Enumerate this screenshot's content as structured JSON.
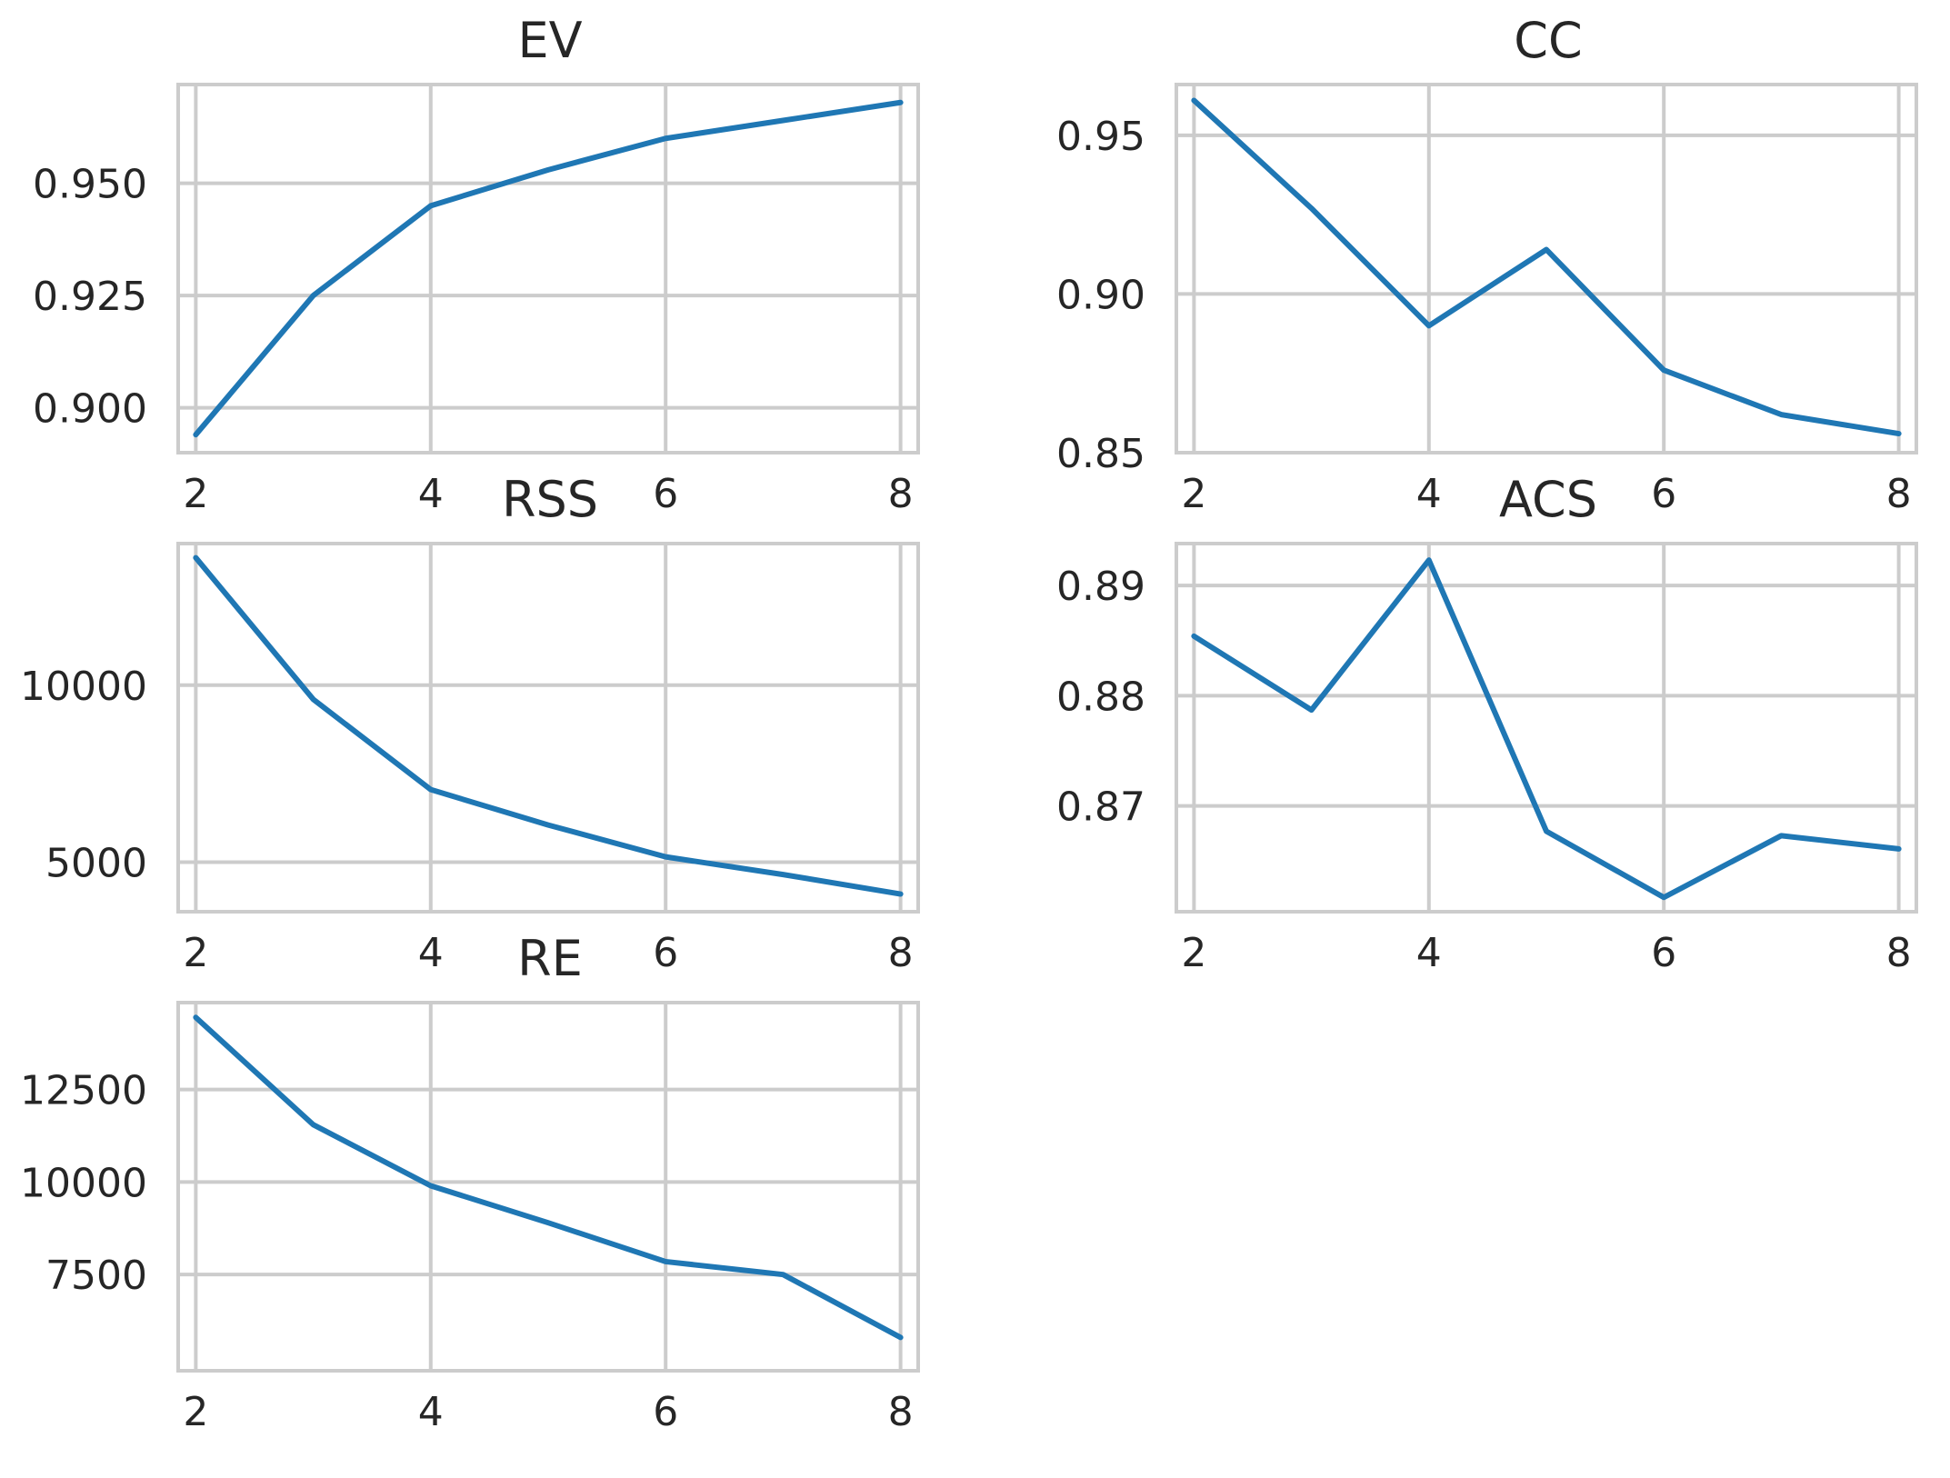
{
  "chart_data": [
    {
      "type": "line",
      "title": "EV",
      "xlabel": "",
      "ylabel": "",
      "x": [
        2,
        3,
        4,
        5,
        6,
        7,
        8
      ],
      "series": [
        {
          "values": [
            0.894,
            0.925,
            0.945,
            0.953,
            0.96,
            0.964,
            0.968
          ]
        }
      ],
      "xlim": [
        1.85,
        8.15
      ],
      "ylim": [
        0.89,
        0.972
      ],
      "xticks": [
        2,
        4,
        6,
        8
      ],
      "xtick_labels": [
        "2",
        "4",
        "6",
        "8"
      ],
      "yticks": [
        0.9,
        0.925,
        0.95
      ],
      "ytick_labels": [
        "0.900",
        "0.925",
        "0.950"
      ],
      "grid": true
    },
    {
      "type": "line",
      "title": "CC",
      "xlabel": "",
      "ylabel": "",
      "x": [
        2,
        3,
        4,
        5,
        6,
        7,
        8
      ],
      "series": [
        {
          "values": [
            0.961,
            0.927,
            0.89,
            0.914,
            0.876,
            0.862,
            0.856
          ]
        }
      ],
      "xlim": [
        1.85,
        8.15
      ],
      "ylim": [
        0.85,
        0.966
      ],
      "xticks": [
        2,
        4,
        6,
        8
      ],
      "xtick_labels": [
        "2",
        "4",
        "6",
        "8"
      ],
      "yticks": [
        0.85,
        0.9,
        0.95
      ],
      "ytick_labels": [
        "0.85",
        "0.90",
        "0.95"
      ],
      "grid": true
    },
    {
      "type": "line",
      "title": "RSS",
      "xlabel": "",
      "ylabel": "",
      "x": [
        2,
        3,
        4,
        5,
        6,
        7,
        8
      ],
      "series": [
        {
          "values": [
            13600,
            9600,
            7050,
            6050,
            5150,
            4650,
            4100
          ]
        }
      ],
      "xlim": [
        1.85,
        8.15
      ],
      "ylim": [
        3600,
        14000
      ],
      "xticks": [
        2,
        4,
        6,
        8
      ],
      "xtick_labels": [
        "2",
        "4",
        "6",
        "8"
      ],
      "yticks": [
        5000,
        10000
      ],
      "ytick_labels": [
        "5000",
        "10000"
      ],
      "grid": true
    },
    {
      "type": "line",
      "title": "ACS",
      "xlabel": "",
      "ylabel": "",
      "x": [
        2,
        3,
        4,
        5,
        6,
        7,
        8
      ],
      "series": [
        {
          "values": [
            0.8854,
            0.8787,
            0.8923,
            0.8677,
            0.8617,
            0.8673,
            0.8661
          ]
        }
      ],
      "xlim": [
        1.85,
        8.15
      ],
      "ylim": [
        0.8604,
        0.8938
      ],
      "xticks": [
        2,
        4,
        6,
        8
      ],
      "xtick_labels": [
        "2",
        "4",
        "6",
        "8"
      ],
      "yticks": [
        0.87,
        0.88,
        0.89
      ],
      "ytick_labels": [
        "0.87",
        "0.88",
        "0.89"
      ],
      "grid": true
    },
    {
      "type": "line",
      "title": "RE",
      "xlabel": "",
      "ylabel": "",
      "x": [
        2,
        3,
        4,
        5,
        6,
        7,
        8
      ],
      "series": [
        {
          "values": [
            14450,
            11550,
            9900,
            8900,
            7850,
            7500,
            5800
          ]
        }
      ],
      "xlim": [
        1.85,
        8.15
      ],
      "ylim": [
        4900,
        14850
      ],
      "xticks": [
        2,
        4,
        6,
        8
      ],
      "xtick_labels": [
        "2",
        "4",
        "6",
        "8"
      ],
      "yticks": [
        7500,
        10000,
        12500
      ],
      "ytick_labels": [
        "7500",
        "10000",
        "12500"
      ],
      "grid": true
    }
  ],
  "colors": {
    "line": "#1f77b4",
    "grid": "#cccccc",
    "text": "#262626",
    "background": "#ffffff"
  }
}
